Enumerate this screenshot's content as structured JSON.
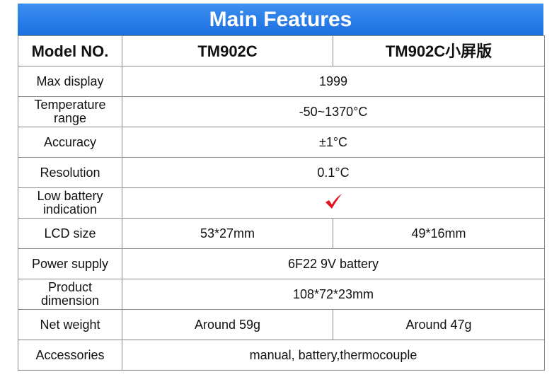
{
  "header": {
    "title": "Main Features"
  },
  "table": {
    "columns": [
      "Model NO.",
      "TM902C",
      "TM902C小屏版"
    ],
    "rows": [
      {
        "label": "Max display",
        "values": [
          "1999"
        ]
      },
      {
        "label": "Temperature range",
        "values": [
          "-50~1370°C"
        ]
      },
      {
        "label": "Accuracy",
        "values": [
          "±1°C"
        ]
      },
      {
        "label": "Resolution",
        "values": [
          "0.1°C"
        ]
      },
      {
        "label": "Low battery indication"
      },
      {
        "label": "LCD size",
        "values": [
          "53*27mm",
          "49*16mm"
        ]
      },
      {
        "label": "Power supply",
        "values": [
          "6F22 9V battery"
        ]
      },
      {
        "label": "Product dimension",
        "values": [
          "108*72*23mm"
        ]
      },
      {
        "label": "Net weight",
        "values": [
          "Around 59g",
          "Around 47g"
        ]
      },
      {
        "label": "Accessories",
        "values": [
          "manual, battery,thermocouple"
        ]
      }
    ]
  }
}
